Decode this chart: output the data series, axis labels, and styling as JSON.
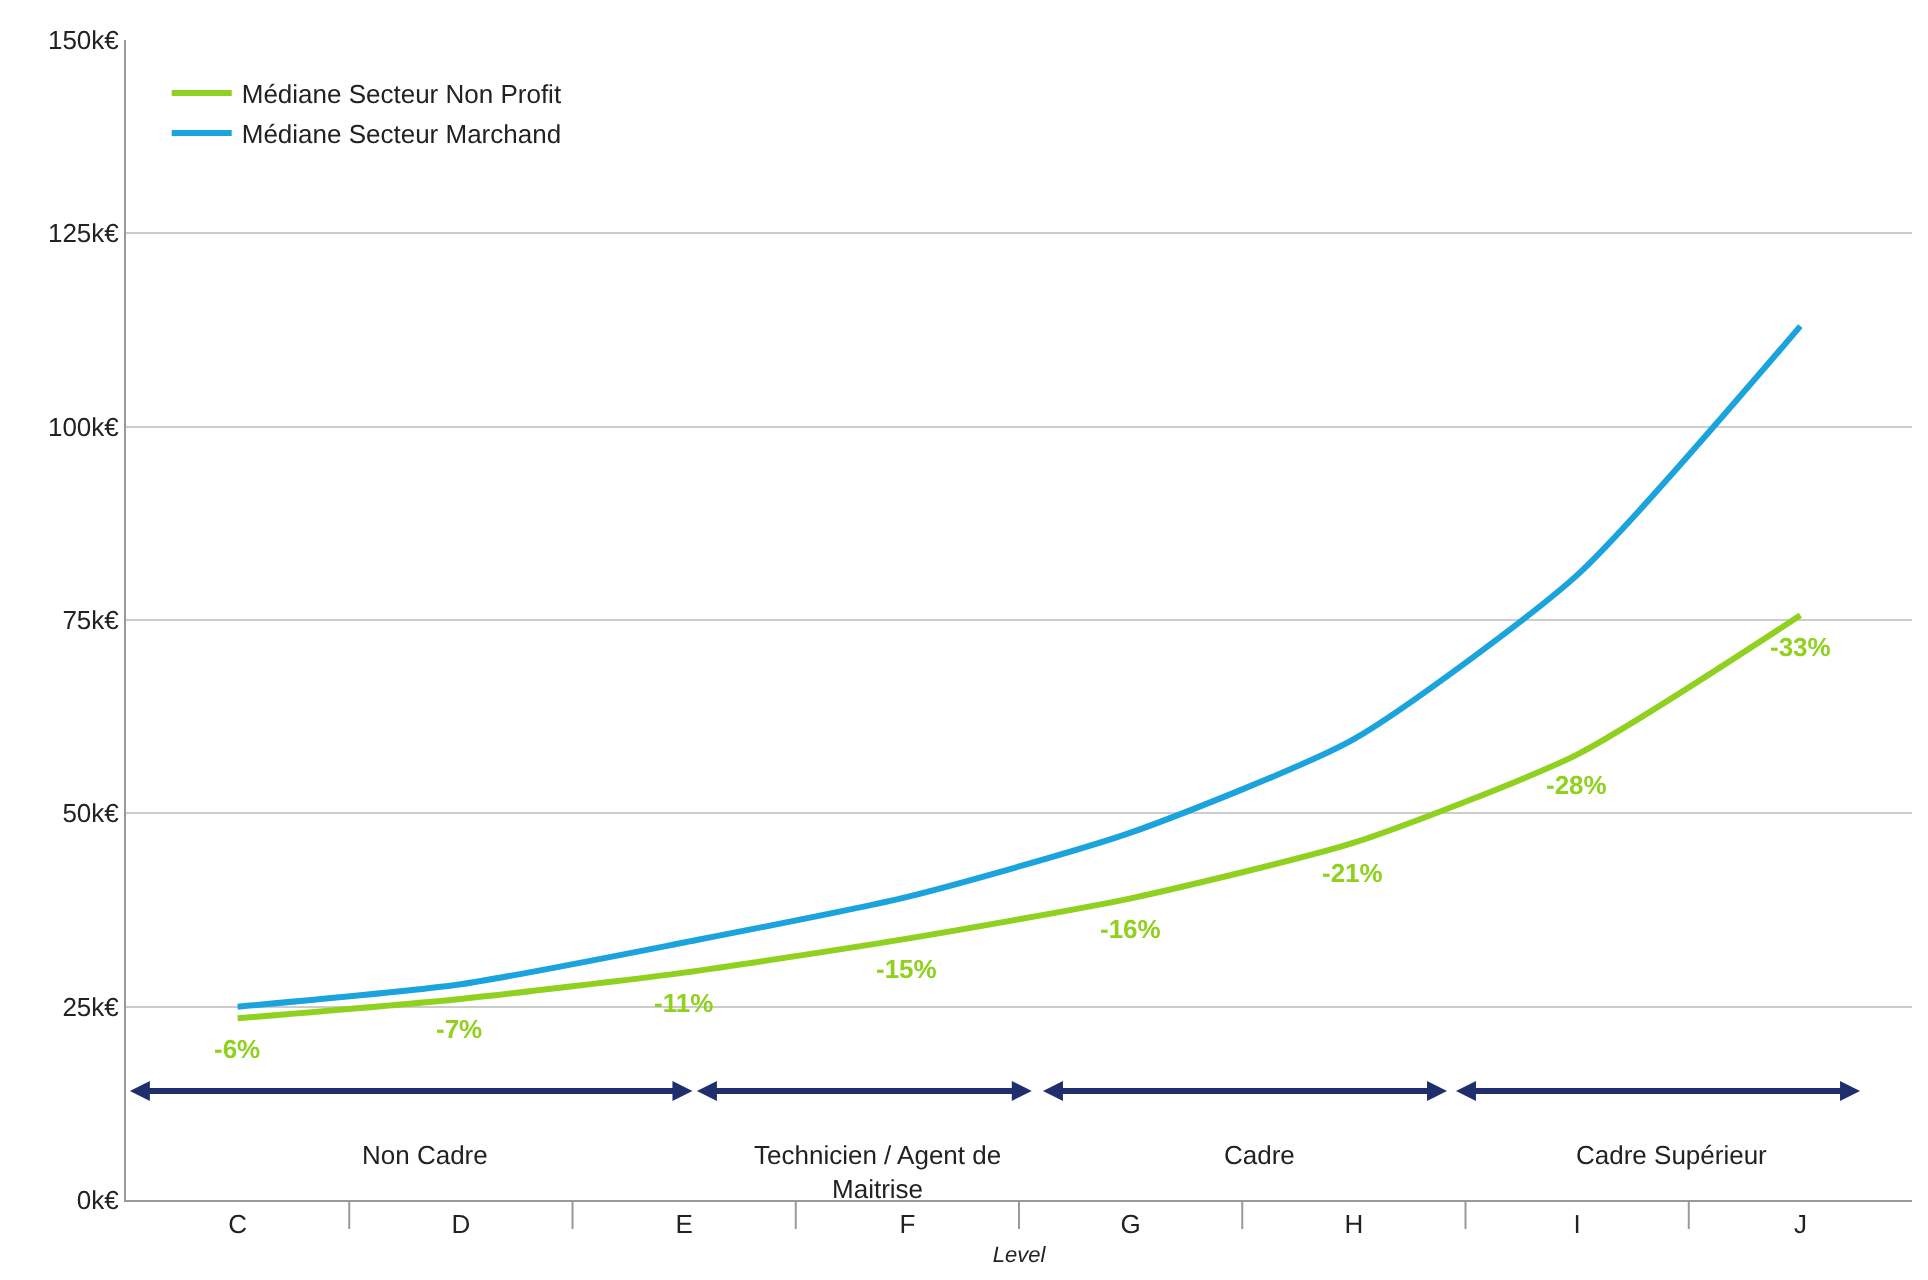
{
  "chart_data": {
    "type": "line",
    "xlabel": "Level",
    "categories": [
      "C",
      "D",
      "E",
      "F",
      "G",
      "H",
      "I",
      "J"
    ],
    "series": [
      {
        "name": "Médiane Secteur Non Profit",
        "color": "#8fd11e",
        "values": [
          23500,
          26000,
          29400,
          33800,
          39000,
          46200,
          57600,
          75600
        ]
      },
      {
        "name": "Médiane Secteur Marchand",
        "color": "#1aa3dc",
        "values": [
          25000,
          27900,
          33300,
          39200,
          47500,
          59600,
          80800,
          113000
        ]
      }
    ],
    "ylim": [
      0,
      150000
    ],
    "yticks": [
      {
        "value": 0,
        "label": "0k€"
      },
      {
        "value": 25000,
        "label": "25k€"
      },
      {
        "value": 50000,
        "label": "50k€"
      },
      {
        "value": 75000,
        "label": "75k€"
      },
      {
        "value": 100000,
        "label": "100k€"
      },
      {
        "value": 125000,
        "label": "125k€"
      },
      {
        "value": 150000,
        "label": "150k€"
      }
    ],
    "annotations": [
      "Non Cadre",
      "Technicien / Agent de Maitrise",
      "Cadre",
      "Cadre Supérieur",
      "-6%",
      "-7%",
      "-11%",
      "-15%",
      "-16%",
      "-21%",
      "-28%",
      "-33%"
    ],
    "grid": "y",
    "legend": "top left",
    "marker": "none",
    "line_style": "solid"
  }
}
